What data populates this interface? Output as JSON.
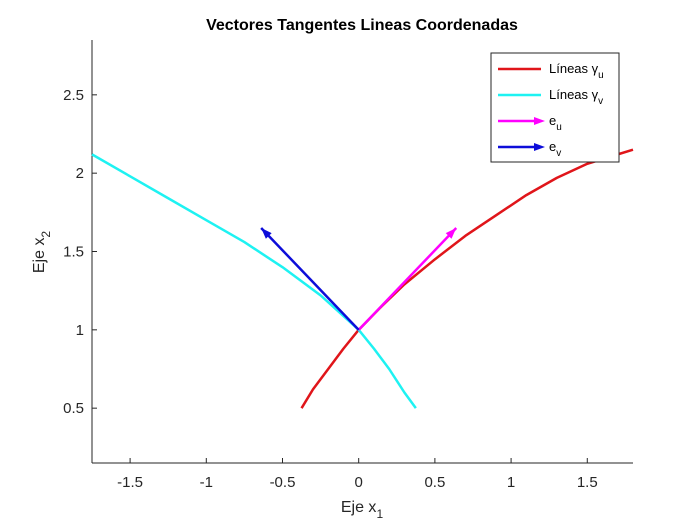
{
  "chart_data": {
    "type": "line",
    "title": "Vectores Tangentes Lineas Coordenadas",
    "xlabel": {
      "base": "Eje x",
      "sub": "1"
    },
    "ylabel": {
      "base": "Eje x",
      "sub": "2"
    },
    "xlim": [
      -1.75,
      1.8
    ],
    "ylim": [
      0.15,
      2.85
    ],
    "xticks": [
      -1.5,
      -1,
      -0.5,
      0,
      0.5,
      1,
      1.5
    ],
    "xtick_labels": [
      "-1.5",
      "-1",
      "-0.5",
      "0",
      "0.5",
      "1",
      "1.5"
    ],
    "yticks": [
      0.5,
      1,
      1.5,
      2,
      2.5
    ],
    "ytick_labels": [
      "0.5",
      "1",
      "1.5",
      "2",
      "2.5"
    ],
    "grid": false,
    "legend_position": "top-right",
    "series": [
      {
        "name": "Líneas γu",
        "kind": "curve",
        "color": "#e0151a",
        "x": [
          -0.375,
          -0.3,
          -0.2,
          -0.1,
          0,
          0.15,
          0.3,
          0.5,
          0.7,
          0.9,
          1.1,
          1.3,
          1.5,
          1.7,
          1.8
        ],
        "y": [
          0.5,
          0.62,
          0.75,
          0.88,
          1.0,
          1.15,
          1.29,
          1.45,
          1.6,
          1.73,
          1.86,
          1.97,
          2.06,
          2.12,
          2.15
        ]
      },
      {
        "name": "Líneas γv",
        "kind": "curve",
        "color": "#1ef2f2",
        "x": [
          -1.75,
          -1.5,
          -1.25,
          -1.0,
          -0.75,
          -0.5,
          -0.25,
          0,
          0.1,
          0.2,
          0.3,
          0.375
        ],
        "y": [
          2.12,
          1.98,
          1.84,
          1.7,
          1.56,
          1.4,
          1.22,
          1.0,
          0.88,
          0.75,
          0.6,
          0.5
        ]
      },
      {
        "name": "e",
        "sub": "u",
        "kind": "arrow",
        "color": "#ff00ff",
        "x": [
          0,
          0.64
        ],
        "y": [
          1,
          1.65
        ]
      },
      {
        "name": "e",
        "sub": "v",
        "kind": "arrow",
        "color": "#0d0dd9",
        "x": [
          0,
          -0.64
        ],
        "y": [
          1,
          1.65
        ]
      }
    ],
    "legend": [
      {
        "label": "Líneas γ",
        "sub": "u",
        "color": "#e0151a",
        "kind": "line"
      },
      {
        "label": "Líneas γ",
        "sub": "v",
        "color": "#1ef2f2",
        "kind": "line"
      },
      {
        "label": "e",
        "sub": "u",
        "color": "#ff00ff",
        "kind": "arrow"
      },
      {
        "label": "e",
        "sub": "v",
        "color": "#0d0dd9",
        "kind": "arrow"
      }
    ]
  }
}
